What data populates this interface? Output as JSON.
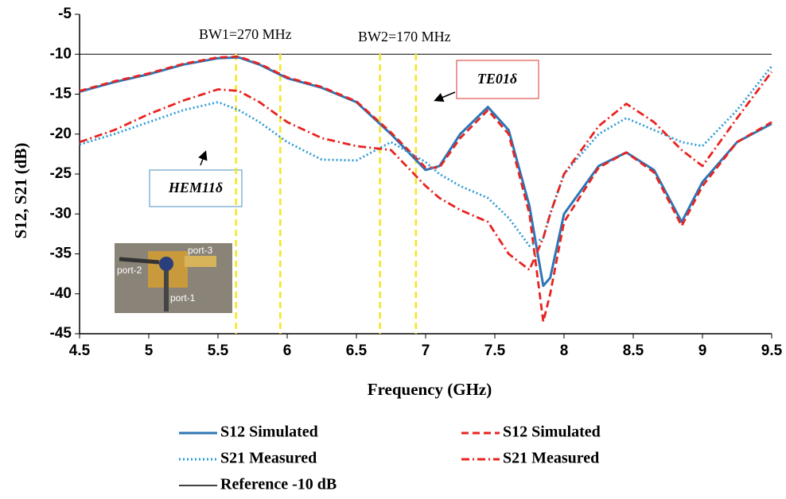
{
  "chart_data": {
    "type": "line",
    "xlabel": "Frequency (GHz)",
    "ylabel": "S12, S21 (dB)",
    "x": [
      4.5,
      4.75,
      5.0,
      5.25,
      5.5,
      5.65,
      5.8,
      6.0,
      6.25,
      6.5,
      6.75,
      7.0,
      7.1,
      7.25,
      7.45,
      7.6,
      7.75,
      7.85,
      7.9,
      8.0,
      8.25,
      8.45,
      8.65,
      8.85,
      9.0,
      9.25,
      9.5
    ],
    "series": [
      {
        "name": "S12  Simulated",
        "color": "#2e75b6",
        "dash": "solid",
        "values": [
          -14.7,
          -13.5,
          -12.5,
          -11.3,
          -10.5,
          -10.4,
          -11.3,
          -13,
          -14.2,
          -16,
          -20,
          -24.5,
          -24,
          -20,
          -16.6,
          -19.5,
          -29,
          -39,
          -38,
          -30,
          -24,
          -22.3,
          -24.5,
          -31,
          -26,
          -21,
          -18.7
        ]
      },
      {
        "name": "S12  Simulated",
        "color": "#e8231f",
        "dash": "dashed",
        "values": [
          -14.6,
          -13.4,
          -12.4,
          -11.2,
          -10.4,
          -10.3,
          -11.2,
          -12.9,
          -14.1,
          -15.9,
          -19.8,
          -24.2,
          -24.2,
          -20.5,
          -17,
          -20,
          -30,
          -43.5,
          -40,
          -31,
          -24.2,
          -22.3,
          -24.8,
          -31.5,
          -26.5,
          -21,
          -18.5
        ]
      },
      {
        "name": "S21  Measured",
        "color": "#2e9bd6",
        "dash": "dotted",
        "values": [
          -21.3,
          -20,
          -18.5,
          -17,
          -16,
          -17,
          -18.5,
          -21,
          -23.2,
          -23.3,
          -21,
          -23.5,
          -25,
          -26.5,
          -28,
          -30.5,
          -34,
          -33,
          -30,
          -25,
          -20,
          -18,
          -19.5,
          -21,
          -21.5,
          -17,
          -11.5
        ]
      },
      {
        "name": "S21  Measured",
        "color": "#e8231f",
        "dash": "dashdot",
        "values": [
          -21,
          -19.5,
          -17.5,
          -15.8,
          -14.4,
          -14.6,
          -16,
          -18.5,
          -20.5,
          -21.5,
          -22,
          -26.5,
          -28,
          -29.5,
          -31,
          -35,
          -37,
          -33,
          -30,
          -25,
          -19,
          -16.2,
          -18.5,
          -22,
          -24,
          -18,
          -12.2
        ]
      }
    ],
    "reference": {
      "name": "Reference -10 dB",
      "value": -10,
      "color": "#000000"
    },
    "markers": {
      "color": "#f5e61e",
      "values": [
        5.63,
        5.95,
        6.67,
        6.93
      ]
    },
    "annotations": [
      "BW1=270 MHz",
      "BW2=170 MHz",
      "TE01δ",
      "HEM11δ"
    ],
    "inset_labels": [
      "port-3",
      "port-2",
      "port-1"
    ],
    "xlim": [
      4.5,
      9.5
    ],
    "xticks": [
      4.5,
      5,
      5.5,
      6,
      6.5,
      7,
      7.5,
      8,
      8.5,
      9,
      9.5
    ],
    "ylim": [
      -45,
      -5
    ],
    "yticks": [
      -5,
      -10,
      -15,
      -20,
      -25,
      -30,
      -35,
      -40,
      -45
    ]
  }
}
